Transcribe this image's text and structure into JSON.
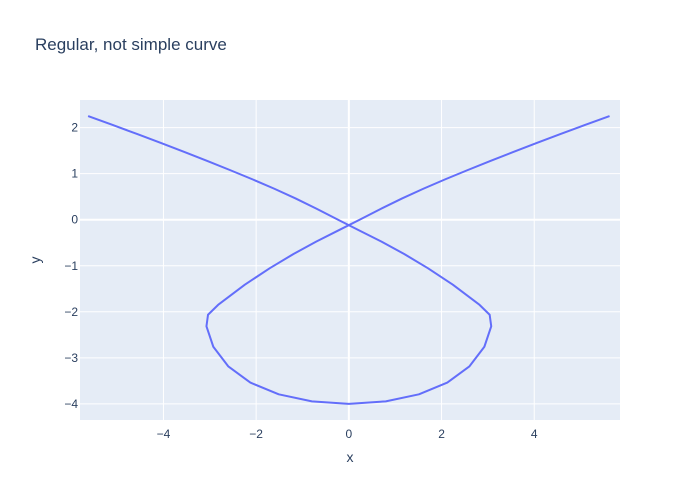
{
  "chart_data": {
    "type": "line",
    "title": "Regular, not simple curve",
    "xlabel": "x",
    "ylabel": "y",
    "xlim": [
      -5.8,
      5.85
    ],
    "ylim": [
      -4.35,
      2.6
    ],
    "xticks": [
      -4,
      -2,
      0,
      2,
      4
    ],
    "xtick_labels": [
      "−4",
      "−2",
      "0",
      "2",
      "4"
    ],
    "yticks": [
      2,
      1,
      0,
      -1,
      -2,
      -3,
      -4
    ],
    "ytick_labels": [
      "2",
      "1",
      "0",
      "−1",
      "−2",
      "−3",
      "−4"
    ],
    "grid": true,
    "legend": "none",
    "colors": {
      "line": "#636efa",
      "plot_bg": "#e5ecf6",
      "grid": "#ffffff",
      "text": "#2a3f5f"
    },
    "series": [
      {
        "x": [
          -5.625,
          -5.088,
          -4.563,
          -4.048,
          -3.543,
          -3.048,
          -2.561,
          -2.083,
          -1.613,
          -1.149,
          -0.69,
          -0.232,
          0.232,
          0.705,
          1.194,
          1.705,
          2.244,
          2.82,
          3.038,
          3.072,
          2.924,
          2.603,
          2.125,
          1.513,
          0.796,
          0.0,
          -0.796,
          -1.513,
          -2.125,
          -2.603,
          -2.924,
          -3.072,
          -3.038,
          -2.82,
          -2.244,
          -1.705,
          -1.194,
          -0.705,
          -0.232,
          0.232,
          0.69,
          1.149,
          1.613,
          2.083,
          2.561,
          3.048,
          3.543,
          4.048,
          4.563,
          5.088,
          5.625
        ],
        "y": [
          2.25,
          2.055,
          1.86,
          1.664,
          1.469,
          1.274,
          1.077,
          0.879,
          0.675,
          0.462,
          0.236,
          0.0,
          -0.236,
          -0.476,
          -0.744,
          -1.053,
          -1.411,
          -1.849,
          -2.064,
          -2.314,
          -2.759,
          -3.183,
          -3.538,
          -3.792,
          -3.945,
          -4.0,
          -3.945,
          -3.792,
          -3.538,
          -3.183,
          -2.759,
          -2.314,
          -2.064,
          -1.849,
          -1.411,
          -1.053,
          -0.744,
          -0.476,
          -0.236,
          0.0,
          0.236,
          0.462,
          0.675,
          0.879,
          1.077,
          1.274,
          1.469,
          1.664,
          1.86,
          2.055,
          2.25
        ]
      }
    ]
  }
}
